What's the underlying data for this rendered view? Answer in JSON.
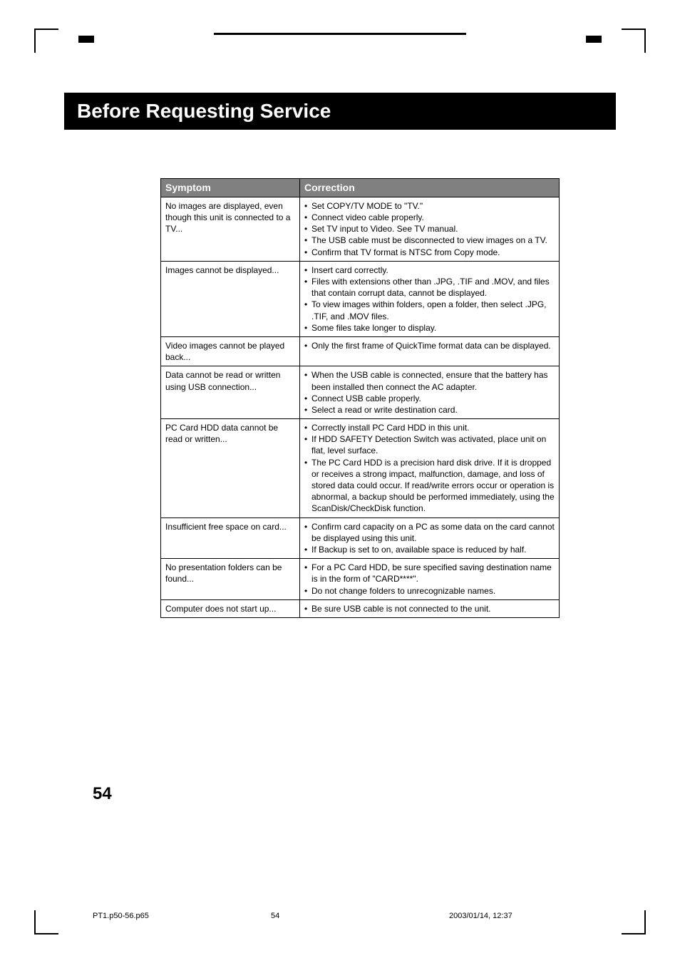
{
  "title": "Before Requesting Service",
  "table": {
    "headers": {
      "symptom": "Symptom",
      "correction": "Correction"
    },
    "rows": [
      {
        "symptom": "No images are displayed, even though this unit is connected to a TV...",
        "corrections": [
          "Set COPY/TV MODE to \"TV.\"",
          "Connect video cable properly.",
          "Set TV input to Video. See TV manual.",
          "The USB cable must be disconnected to view images on a TV.",
          "Confirm that TV format is NTSC from Copy mode."
        ]
      },
      {
        "symptom": "Images cannot be displayed...",
        "corrections": [
          "Insert card correctly.",
          "Files with extensions other than .JPG, .TIF and .MOV, and files that contain corrupt data, cannot be displayed.",
          "To view images within folders, open a folder, then select .JPG, .TIF, and .MOV files.",
          "Some files take longer to display."
        ]
      },
      {
        "symptom": "Video images cannot be played back...",
        "corrections": [
          "Only the first frame of QuickTime format data can be displayed."
        ]
      },
      {
        "symptom": "Data cannot be read or written using USB connection...",
        "corrections": [
          "When the USB cable is connected, ensure that the battery has been installed then connect the AC adapter.",
          "Connect USB cable properly.",
          "Select a read or write destination card."
        ]
      },
      {
        "symptom": "PC Card HDD data cannot be read or written...",
        "corrections": [
          "Correctly install PC Card HDD in this unit.",
          "If HDD SAFETY Detection Switch was activated, place unit on flat, level surface.",
          "The PC Card HDD is a precision hard disk drive. If it is dropped or receives a strong impact, malfunction, damage, and loss of stored data could occur. If read/write errors occur or operation is abnormal, a backup should be performed immediately, using the ScanDisk/CheckDisk function."
        ]
      },
      {
        "symptom": "Insufficient free space on card...",
        "corrections": [
          "Confirm card capacity on a PC as some data on the card cannot be displayed using this unit.",
          "If Backup is set to on, available space is reduced by half."
        ]
      },
      {
        "symptom": "No presentation folders can be found...",
        "corrections": [
          "For a PC Card HDD, be sure specified saving destination name is in the form of \"CARD****\".",
          "Do not change folders to unrecognizable names."
        ]
      },
      {
        "symptom": "Computer does not start up...",
        "corrections": [
          "Be sure USB cable is not connected to the unit."
        ]
      }
    ]
  },
  "pageNumber": "54",
  "footer": {
    "file": "PT1.p50-56.p65",
    "page": "54",
    "timestamp": "2003/01/14, 12:37"
  },
  "colors": {
    "titleBg": "#000000",
    "titleFg": "#ffffff",
    "headerBg": "#808080",
    "headerFg": "#ffffff",
    "border": "#000000",
    "pageBg": "#ffffff"
  }
}
